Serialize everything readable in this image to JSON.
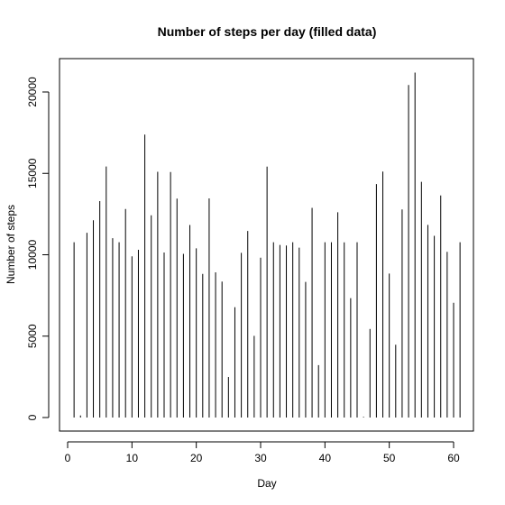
{
  "chart_data": {
    "type": "bar",
    "style": "histogram-lines",
    "title": "Number of steps per day (filled data)",
    "xlabel": "Day",
    "ylabel": "Number of steps",
    "xlim": [
      0,
      62
    ],
    "ylim": [
      0,
      21200
    ],
    "x_ticks": [
      0,
      10,
      20,
      30,
      40,
      50,
      60
    ],
    "x_tick_labels": [
      "0",
      "10",
      "20",
      "30",
      "40",
      "50",
      "60"
    ],
    "y_ticks": [
      0,
      5000,
      10000,
      15000,
      20000
    ],
    "y_tick_labels": [
      "0",
      "5000",
      "10000",
      "15000",
      "20000"
    ],
    "grid": false,
    "x": [
      1,
      2,
      3,
      4,
      5,
      6,
      7,
      8,
      9,
      10,
      11,
      12,
      13,
      14,
      15,
      16,
      17,
      18,
      19,
      20,
      21,
      22,
      23,
      24,
      25,
      26,
      27,
      28,
      29,
      30,
      31,
      32,
      33,
      34,
      35,
      36,
      37,
      38,
      39,
      40,
      41,
      42,
      43,
      44,
      45,
      46,
      47,
      48,
      49,
      50,
      51,
      52,
      53,
      54,
      55,
      56,
      57,
      58,
      59,
      60,
      61
    ],
    "values": [
      10766,
      126,
      11352,
      12116,
      13294,
      15420,
      11015,
      10766,
      12811,
      9900,
      10304,
      17382,
      12426,
      15098,
      10139,
      15084,
      13452,
      10056,
      11829,
      10395,
      8821,
      13460,
      8918,
      8355,
      2492,
      6778,
      10119,
      11458,
      5018,
      9819,
      15414,
      10766,
      10600,
      10571,
      10766,
      10439,
      8334,
      12883,
      3219,
      10766,
      10766,
      12608,
      10765,
      7336,
      10766,
      41,
      5441,
      14339,
      15110,
      8841,
      4472,
      12787,
      20427,
      21194,
      14478,
      11834,
      11162,
      13646,
      10183,
      7047,
      10766
    ],
    "colors": {
      "bars": "#000000",
      "axes": "#000000",
      "background": "#ffffff"
    }
  }
}
